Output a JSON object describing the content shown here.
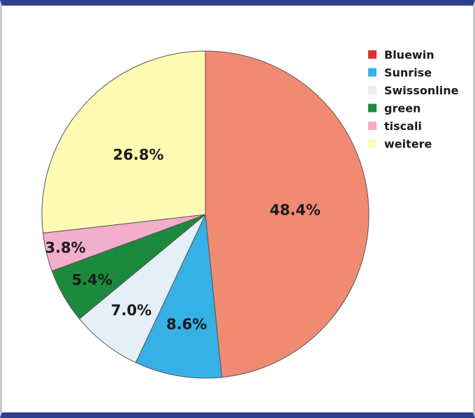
{
  "chart_data": {
    "type": "pie",
    "title": "",
    "categories": [
      "Bluewin",
      "Sunrise",
      "Swissonline",
      "green",
      "tiscali",
      "weitere"
    ],
    "values": [
      48.4,
      8.6,
      7.0,
      5.4,
      3.8,
      26.8
    ],
    "labels": [
      "48.4%",
      "8.6%",
      "7.0%",
      "5.4%",
      "3.8%",
      "26.8%"
    ],
    "slice_colors": [
      "#f08a72",
      "#35b1e5",
      "#e4eff7",
      "#1c8a3e",
      "#f2aecb",
      "#fffbb5"
    ],
    "legend_colors": [
      "#e0312e",
      "#35b1e5",
      "#e4eff7",
      "#1c8a3e",
      "#f2aecb",
      "#fffbb5"
    ],
    "legend": "top-right",
    "start_angle": "12 o'clock",
    "direction": "clockwise"
  }
}
